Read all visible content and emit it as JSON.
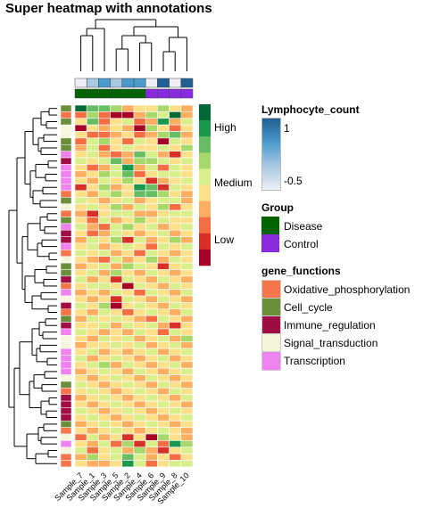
{
  "chart_data": {
    "type": "heatmap",
    "title": "Super heatmap with annotations",
    "samples": [
      "Sample_7",
      "Sample_1",
      "Sample_3",
      "Sample_5",
      "Sample_2",
      "Sample_4",
      "Sample_6",
      "Sample_9",
      "Sample_8",
      "Sample_10"
    ],
    "lymphocyte_count": [
      -0.5,
      -0.2,
      0.4,
      -0.1,
      0.3,
      0.5,
      -0.4,
      1,
      -0.5,
      1
    ],
    "group": [
      "Disease",
      "Disease",
      "Disease",
      "Disease",
      "Disease",
      "Disease",
      "Control",
      "Control",
      "Control",
      "Control"
    ],
    "heat_legend": {
      "labels": [
        "High",
        "Medium",
        "Low"
      ],
      "colors": [
        "#006837",
        "#1a9850",
        "#66bd63",
        "#a6d96a",
        "#d9ef8b",
        "#fee08b",
        "#fdae61",
        "#f46d43",
        "#d73027",
        "#a50026"
      ]
    },
    "lymphocyte_legend": {
      "title": "Lymphocyte_count",
      "labels": [
        "1",
        "-0.5"
      ],
      "colors": [
        "#1f5f93",
        "#4a9acb",
        "#a9c8e2",
        "#eff0f7"
      ]
    },
    "group_legend": {
      "title": "Group",
      "entries": [
        {
          "label": "Disease",
          "color": "#006400"
        },
        {
          "label": "Control",
          "color": "#8a2be2"
        }
      ]
    },
    "function_legend": {
      "title": "gene_functions",
      "entries": [
        {
          "label": "Oxidative_phosphorylation",
          "color": "#f4754a"
        },
        {
          "label": "Cell_cycle",
          "color": "#6b8e3a"
        },
        {
          "label": "Immune_regulation",
          "color": "#9e0e45"
        },
        {
          "label": "Signal_transduction",
          "color": "#f5f5dc"
        },
        {
          "label": "Transcription",
          "color": "#ee82ee"
        }
      ]
    },
    "gene_functions": [
      "Cell_cycle",
      "Oxidative_phosphorylation",
      "Cell_cycle",
      "Signal_transduction",
      "Signal_transduction",
      "Cell_cycle",
      "Cell_cycle",
      "Transcription",
      "Immune_regulation",
      "Transcription",
      "Transcription",
      "Transcription",
      "Transcription",
      "Oxidative_phosphorylation",
      "Cell_cycle",
      "Signal_transduction",
      "Oxidative_phosphorylation",
      "Cell_cycle",
      "Transcription",
      "Immune_regulation",
      "Immune_regulation",
      "Transcription",
      "Oxidative_phosphorylation",
      "Signal_transduction",
      "Cell_cycle",
      "Cell_cycle",
      "Immune_regulation",
      "Oxidative_phosphorylation",
      "Transcription",
      "Signal_transduction",
      "Immune_regulation",
      "Oxidative_phosphorylation",
      "Cell_cycle",
      "Immune_regulation",
      "Transcription",
      "Signal_transduction",
      "Signal_transduction",
      "Transcription",
      "Transcription",
      "Transcription",
      "Transcription",
      "Signal_transduction",
      "Cell_cycle",
      "Oxidative_phosphorylation",
      "Immune_regulation",
      "Immune_regulation",
      "Immune_regulation",
      "Immune_regulation",
      "Cell_cycle",
      "Oxidative_phosphorylation",
      "Signal_transduction",
      "Transcription",
      "Signal_transduction",
      "Oxidative_phosphorylation",
      "Oxidative_phosphorylation"
    ],
    "values": [
      [
        5,
        3,
        3,
        2,
        -1,
        0,
        0,
        2,
        0,
        -1
      ],
      [
        -2,
        2,
        -2,
        -4,
        -4,
        -1,
        2,
        1,
        5,
        -1
      ],
      [
        0,
        3,
        -2,
        0,
        1,
        -2,
        -1,
        4,
        -1,
        1
      ],
      [
        -4,
        0,
        -1,
        0,
        -1,
        -4,
        2,
        0,
        -2,
        0
      ],
      [
        0,
        -2,
        -2,
        -1,
        0,
        -2,
        -1,
        2,
        3,
        -1
      ],
      [
        -2,
        1,
        2,
        0,
        -2,
        1,
        0,
        -4,
        1,
        0
      ],
      [
        -1,
        1,
        -2,
        0,
        1,
        0,
        0,
        1,
        0,
        2
      ],
      [
        0,
        1,
        -1,
        -2,
        -1,
        3,
        1,
        -1,
        -3,
        0
      ],
      [
        1,
        0,
        1,
        3,
        -1,
        2,
        2,
        1,
        0,
        1
      ],
      [
        0,
        -2,
        -1,
        1,
        4,
        -1,
        1,
        -2,
        1,
        0
      ],
      [
        -1,
        0,
        2,
        1,
        3,
        -2,
        0,
        1,
        1,
        0
      ],
      [
        0,
        -1,
        1,
        0,
        2,
        0,
        -3,
        -1,
        0,
        1
      ],
      [
        -3,
        0,
        2,
        -1,
        0,
        4,
        3,
        -3,
        1,
        0
      ],
      [
        0,
        -1,
        1,
        2,
        0,
        3,
        3,
        2,
        0,
        -1
      ],
      [
        1,
        0,
        -1,
        0,
        1,
        -1,
        0,
        1,
        1,
        -1
      ],
      [
        0,
        1,
        0,
        2,
        -1,
        1,
        0,
        2,
        -2,
        0
      ],
      [
        -1,
        -3,
        0,
        1,
        1,
        -1,
        -1,
        0,
        1,
        1
      ],
      [
        0,
        -2,
        1,
        -1,
        0,
        2,
        0,
        1,
        0,
        0
      ],
      [
        1,
        -1,
        -2,
        1,
        2,
        0,
        1,
        -1,
        0,
        1
      ],
      [
        0,
        -2,
        -1,
        1,
        0,
        -1,
        0,
        1,
        -1,
        0
      ],
      [
        -1,
        1,
        0,
        2,
        -3,
        1,
        -1,
        0,
        2,
        -1
      ],
      [
        0,
        1,
        -1,
        0,
        1,
        0,
        -2,
        1,
        0,
        1
      ],
      [
        1,
        0,
        1,
        -1,
        0,
        -2,
        1,
        0,
        -1,
        0
      ],
      [
        0,
        -1,
        -2,
        1,
        -1,
        0,
        2,
        -1,
        1,
        0
      ],
      [
        -1,
        0,
        1,
        -1,
        2,
        1,
        0,
        -3,
        0,
        1
      ],
      [
        0,
        1,
        -1,
        2,
        0,
        -1,
        1,
        0,
        -1,
        0
      ],
      [
        1,
        -1,
        0,
        -3,
        1,
        0,
        -1,
        1,
        0,
        -1
      ],
      [
        0,
        1,
        1,
        0,
        -4,
        1,
        0,
        -1,
        1,
        0
      ],
      [
        -1,
        0,
        -1,
        1,
        0,
        -2,
        1,
        0,
        -1,
        1
      ],
      [
        0,
        -1,
        0,
        -3,
        1,
        0,
        -1,
        1,
        0,
        -1
      ],
      [
        1,
        0,
        2,
        -4,
        0,
        1,
        0,
        -1,
        1,
        0
      ],
      [
        0,
        -1,
        1,
        0,
        -2,
        0,
        1,
        0,
        -1,
        1
      ],
      [
        -1,
        1,
        0,
        1,
        0,
        -1,
        -2,
        1,
        0,
        -1
      ],
      [
        0,
        0,
        1,
        -1,
        1,
        0,
        1,
        -1,
        -3,
        0
      ],
      [
        1,
        0,
        -1,
        0,
        -1,
        1,
        0,
        -2,
        1,
        0
      ],
      [
        0,
        -1,
        1,
        0,
        1,
        -1,
        0,
        1,
        -1,
        2
      ],
      [
        -1,
        0,
        0,
        1,
        0,
        1,
        -1,
        0,
        1,
        -1
      ],
      [
        0,
        1,
        -1,
        0,
        -1,
        0,
        1,
        -1,
        0,
        1
      ],
      [
        1,
        -1,
        0,
        1,
        0,
        -1,
        0,
        1,
        -1,
        0
      ],
      [
        0,
        1,
        2,
        -1,
        1,
        0,
        -1,
        0,
        1,
        -1
      ],
      [
        -1,
        0,
        1,
        0,
        -1,
        1,
        0,
        -1,
        0,
        1
      ],
      [
        0,
        -1,
        0,
        1,
        0,
        -1,
        1,
        0,
        -1,
        0
      ],
      [
        1,
        0,
        -1,
        0,
        1,
        0,
        -1,
        1,
        0,
        -1
      ],
      [
        0,
        1,
        0,
        -1,
        0,
        1,
        0,
        -1,
        1,
        0
      ],
      [
        -1,
        0,
        1,
        0,
        -1,
        0,
        1,
        0,
        -1,
        1
      ],
      [
        0,
        -1,
        0,
        1,
        0,
        -1,
        0,
        1,
        0,
        -1
      ],
      [
        1,
        0,
        -1,
        0,
        1,
        0,
        -1,
        0,
        1,
        0
      ],
      [
        0,
        1,
        0,
        -1,
        0,
        1,
        0,
        -1,
        0,
        1
      ],
      [
        -1,
        0,
        1,
        0,
        -1,
        0,
        1,
        0,
        -1,
        0
      ],
      [
        0,
        -1,
        0,
        1,
        0,
        -1,
        0,
        1,
        0,
        -1
      ],
      [
        -2,
        1,
        -1,
        0,
        -3,
        0,
        -4,
        2,
        0,
        -1
      ],
      [
        0,
        -1,
        1,
        -2,
        2,
        -3,
        1,
        -2,
        4,
        2
      ],
      [
        1,
        -2,
        0,
        1,
        -1,
        2,
        -1,
        -3,
        0,
        1
      ],
      [
        -1,
        2,
        0,
        1,
        3,
        1,
        -1,
        0,
        -2,
        0
      ],
      [
        0,
        -1,
        -1,
        0,
        4,
        1,
        -2,
        0,
        1,
        1
      ]
    ]
  }
}
